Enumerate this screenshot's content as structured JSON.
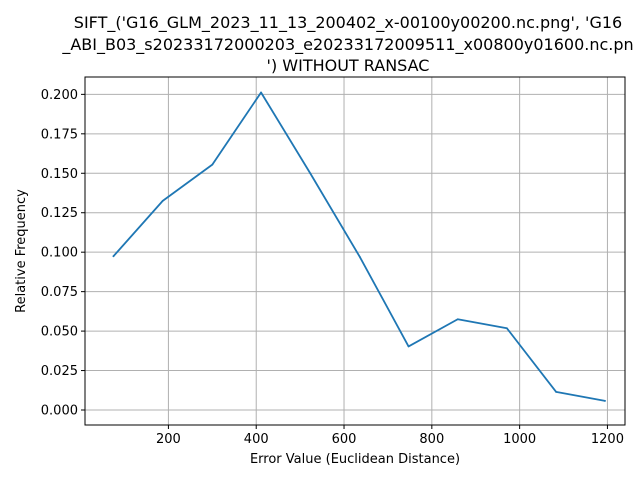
{
  "chart_data": {
    "type": "line",
    "title_lines": [
      "SIFT_('G16_GLM_2023_11_13_200402_x-00100y00200.nc.png', 'G16",
      "_ABI_B03_s20233172000203_e20233172009511_x00800y01600.nc.pn",
      "') WITHOUT RANSAC"
    ],
    "xlabel": "Error Value (Euclidean Distance)",
    "ylabel": "Relative Frequency",
    "xlim": [
      10,
      1240
    ],
    "ylim": [
      -0.0095,
      0.211
    ],
    "xticks": [
      200,
      400,
      600,
      800,
      1000,
      1200
    ],
    "yticks": [
      0.0,
      0.025,
      0.05,
      0.075,
      0.1,
      0.125,
      0.15,
      0.175,
      0.2
    ],
    "ytick_labels": [
      "0.000",
      "0.025",
      "0.050",
      "0.075",
      "0.100",
      "0.125",
      "0.150",
      "0.175",
      "0.200"
    ],
    "grid": true,
    "series": [
      {
        "color": "#1f77b4",
        "x": [
          75,
          187,
          300,
          411,
          523,
          636,
          747,
          859,
          971,
          1083,
          1194
        ],
        "y": [
          0.0975,
          0.1325,
          0.1555,
          0.2012,
          0.15,
          0.097,
          0.0403,
          0.0575,
          0.0518,
          0.0115,
          0.0058
        ]
      }
    ]
  }
}
